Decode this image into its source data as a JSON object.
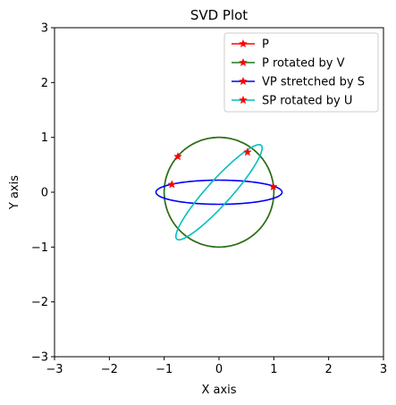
{
  "chart_data": {
    "type": "line",
    "title": "SVD Plot",
    "xlabel": "X axis",
    "ylabel": "Y axis",
    "xlim": [
      -3,
      3
    ],
    "ylim": [
      -3,
      3
    ],
    "xticks": [
      -3,
      -2,
      -1,
      0,
      1,
      2,
      3
    ],
    "yticks": [
      -3,
      -2,
      -1,
      0,
      1,
      2,
      3
    ],
    "xtick_labels": [
      "−3",
      "−2",
      "−1",
      "0",
      "1",
      "2",
      "3"
    ],
    "ytick_labels": [
      "−3",
      "−2",
      "−1",
      "0",
      "1",
      "2",
      "3"
    ],
    "grid": false,
    "legend_position": "top-right",
    "series": [
      {
        "name": "P",
        "color": "#ff0000",
        "shape": "ellipse",
        "semi_axes": [
          1.0,
          1.0
        ],
        "angle_deg": 0,
        "marker": "star",
        "marker_point": [
          0.99,
          0.1
        ]
      },
      {
        "name": "P rotated by V",
        "color": "#1a7a1a",
        "shape": "ellipse",
        "semi_axes": [
          1.0,
          1.0
        ],
        "angle_deg": 0,
        "marker": "star",
        "marker_point": [
          -0.75,
          0.65
        ]
      },
      {
        "name": "VP stretched by S",
        "color": "#0000ff",
        "shape": "ellipse",
        "semi_axes": [
          1.15,
          0.22
        ],
        "angle_deg": 0,
        "marker": "star",
        "marker_point": [
          -0.86,
          0.14
        ]
      },
      {
        "name": "SP rotated by U",
        "color": "#00bfbf",
        "shape": "ellipse",
        "semi_axes": [
          1.15,
          0.22
        ],
        "angle_deg": 48,
        "marker": "star",
        "marker_point": [
          0.52,
          0.73
        ]
      }
    ]
  }
}
